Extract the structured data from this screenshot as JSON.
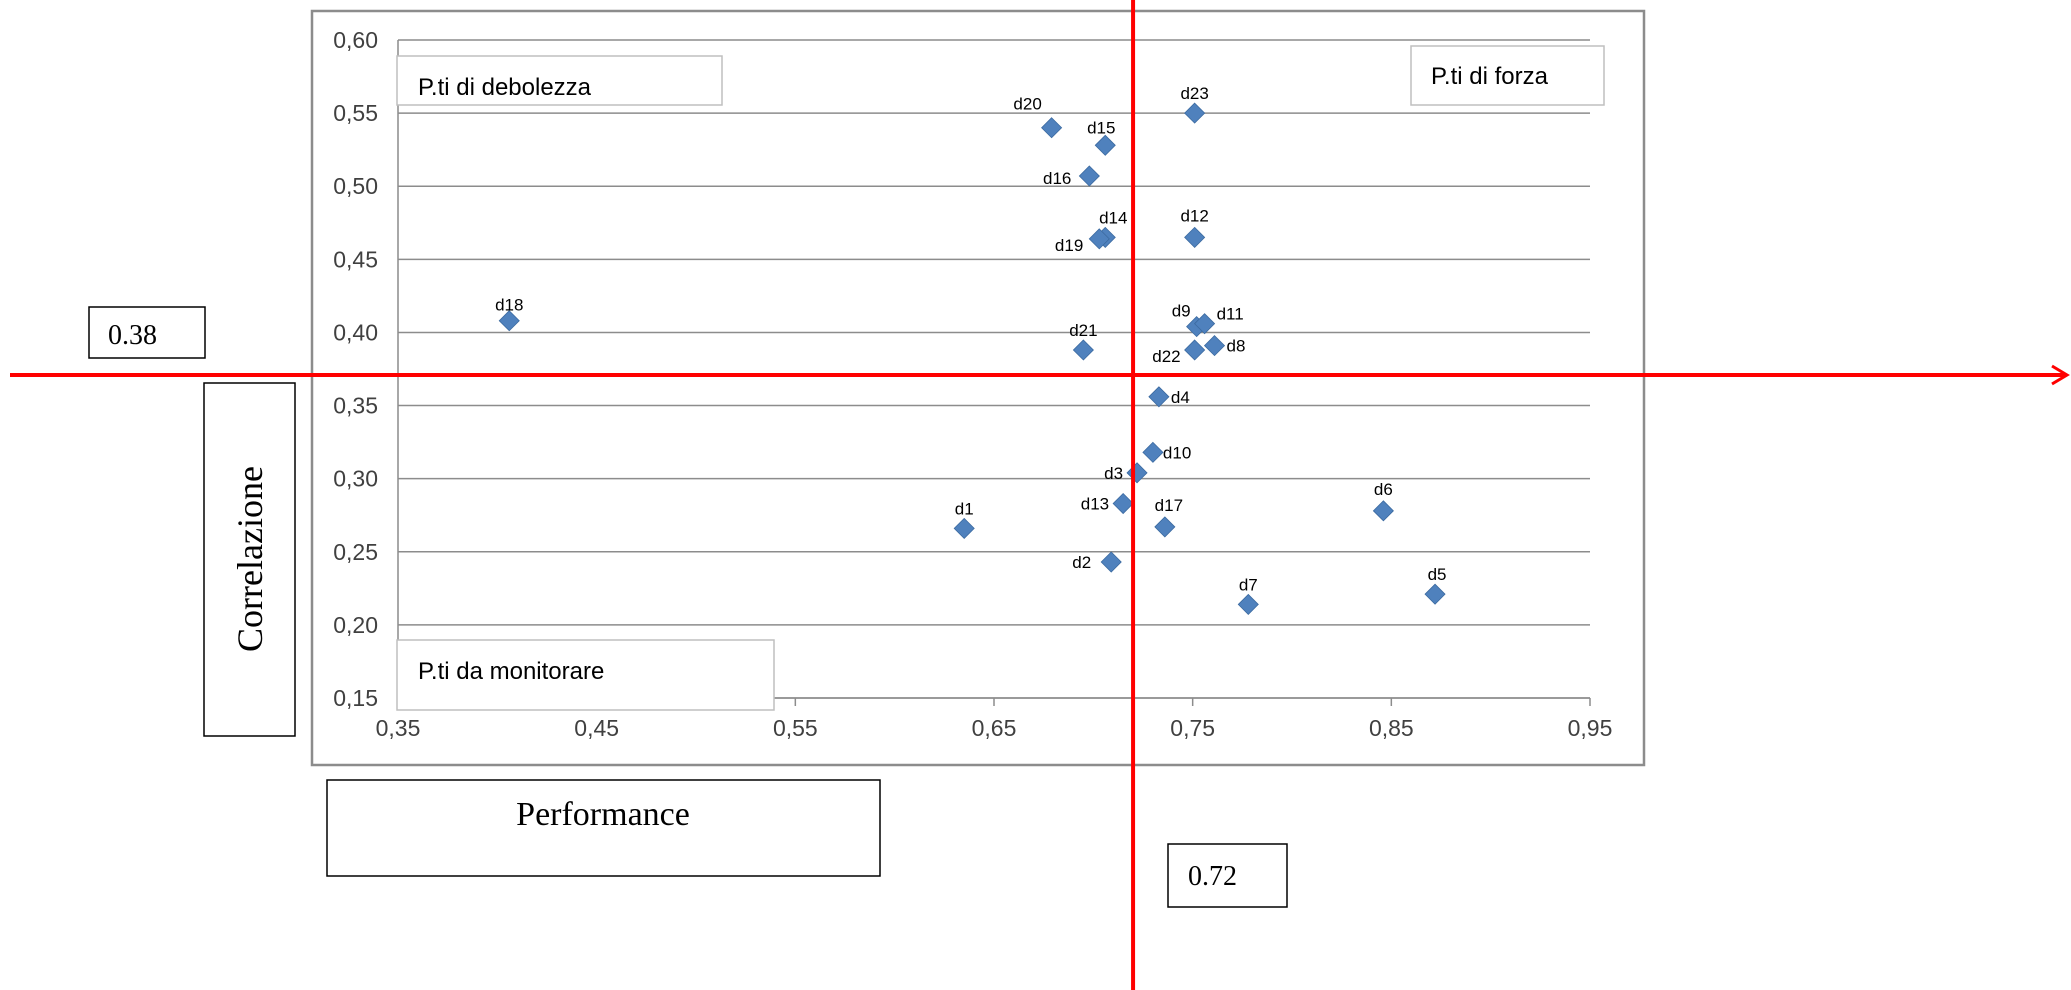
{
  "chart_data": {
    "type": "scatter",
    "title": "",
    "xlabel": "Performance",
    "ylabel": "Correlazione",
    "xlim": [
      0.35,
      0.95
    ],
    "ylim": [
      0.15,
      0.6
    ],
    "x_ticks": [
      "0,35",
      "0,45",
      "0,55",
      "0,65",
      "0,75",
      "0,85",
      "0,95"
    ],
    "y_ticks": [
      "0,60",
      "0,55",
      "0,50",
      "0,45",
      "0,40",
      "0,35",
      "0,30",
      "0,25",
      "0,20",
      "0,15"
    ],
    "grid": "horizontal",
    "marker_color": "#4F81BD",
    "points": [
      {
        "label": "d1",
        "x": 0.635,
        "y": 0.266
      },
      {
        "label": "d2",
        "x": 0.709,
        "y": 0.243
      },
      {
        "label": "d3",
        "x": 0.722,
        "y": 0.304
      },
      {
        "label": "d4",
        "x": 0.733,
        "y": 0.356
      },
      {
        "label": "d5",
        "x": 0.872,
        "y": 0.221
      },
      {
        "label": "d6",
        "x": 0.846,
        "y": 0.278
      },
      {
        "label": "d7",
        "x": 0.778,
        "y": 0.214
      },
      {
        "label": "d8",
        "x": 0.761,
        "y": 0.391
      },
      {
        "label": "d9",
        "x": 0.752,
        "y": 0.404
      },
      {
        "label": "d10",
        "x": 0.73,
        "y": 0.318
      },
      {
        "label": "d11",
        "x": 0.756,
        "y": 0.406
      },
      {
        "label": "d12",
        "x": 0.751,
        "y": 0.465
      },
      {
        "label": "d13",
        "x": 0.715,
        "y": 0.283
      },
      {
        "label": "d14",
        "x": 0.706,
        "y": 0.465
      },
      {
        "label": "d15",
        "x": 0.706,
        "y": 0.528
      },
      {
        "label": "d16",
        "x": 0.698,
        "y": 0.507
      },
      {
        "label": "d17",
        "x": 0.736,
        "y": 0.267
      },
      {
        "label": "d18",
        "x": 0.406,
        "y": 0.408
      },
      {
        "label": "d19",
        "x": 0.703,
        "y": 0.464
      },
      {
        "label": "d20",
        "x": 0.679,
        "y": 0.54
      },
      {
        "label": "d21",
        "x": 0.695,
        "y": 0.388
      },
      {
        "label": "d22",
        "x": 0.751,
        "y": 0.388
      },
      {
        "label": "d23",
        "x": 0.751,
        "y": 0.55
      }
    ],
    "quadrant_labels": {
      "top_left": "P.ti di debolezza",
      "top_right": "P.ti di forza",
      "bottom_left": "P.ti da monitorare"
    },
    "threshold_lines": {
      "color": "#FF0000",
      "x_value": 0.72,
      "x_label": "0.72",
      "y_value": 0.38,
      "y_label": "0.38"
    }
  }
}
